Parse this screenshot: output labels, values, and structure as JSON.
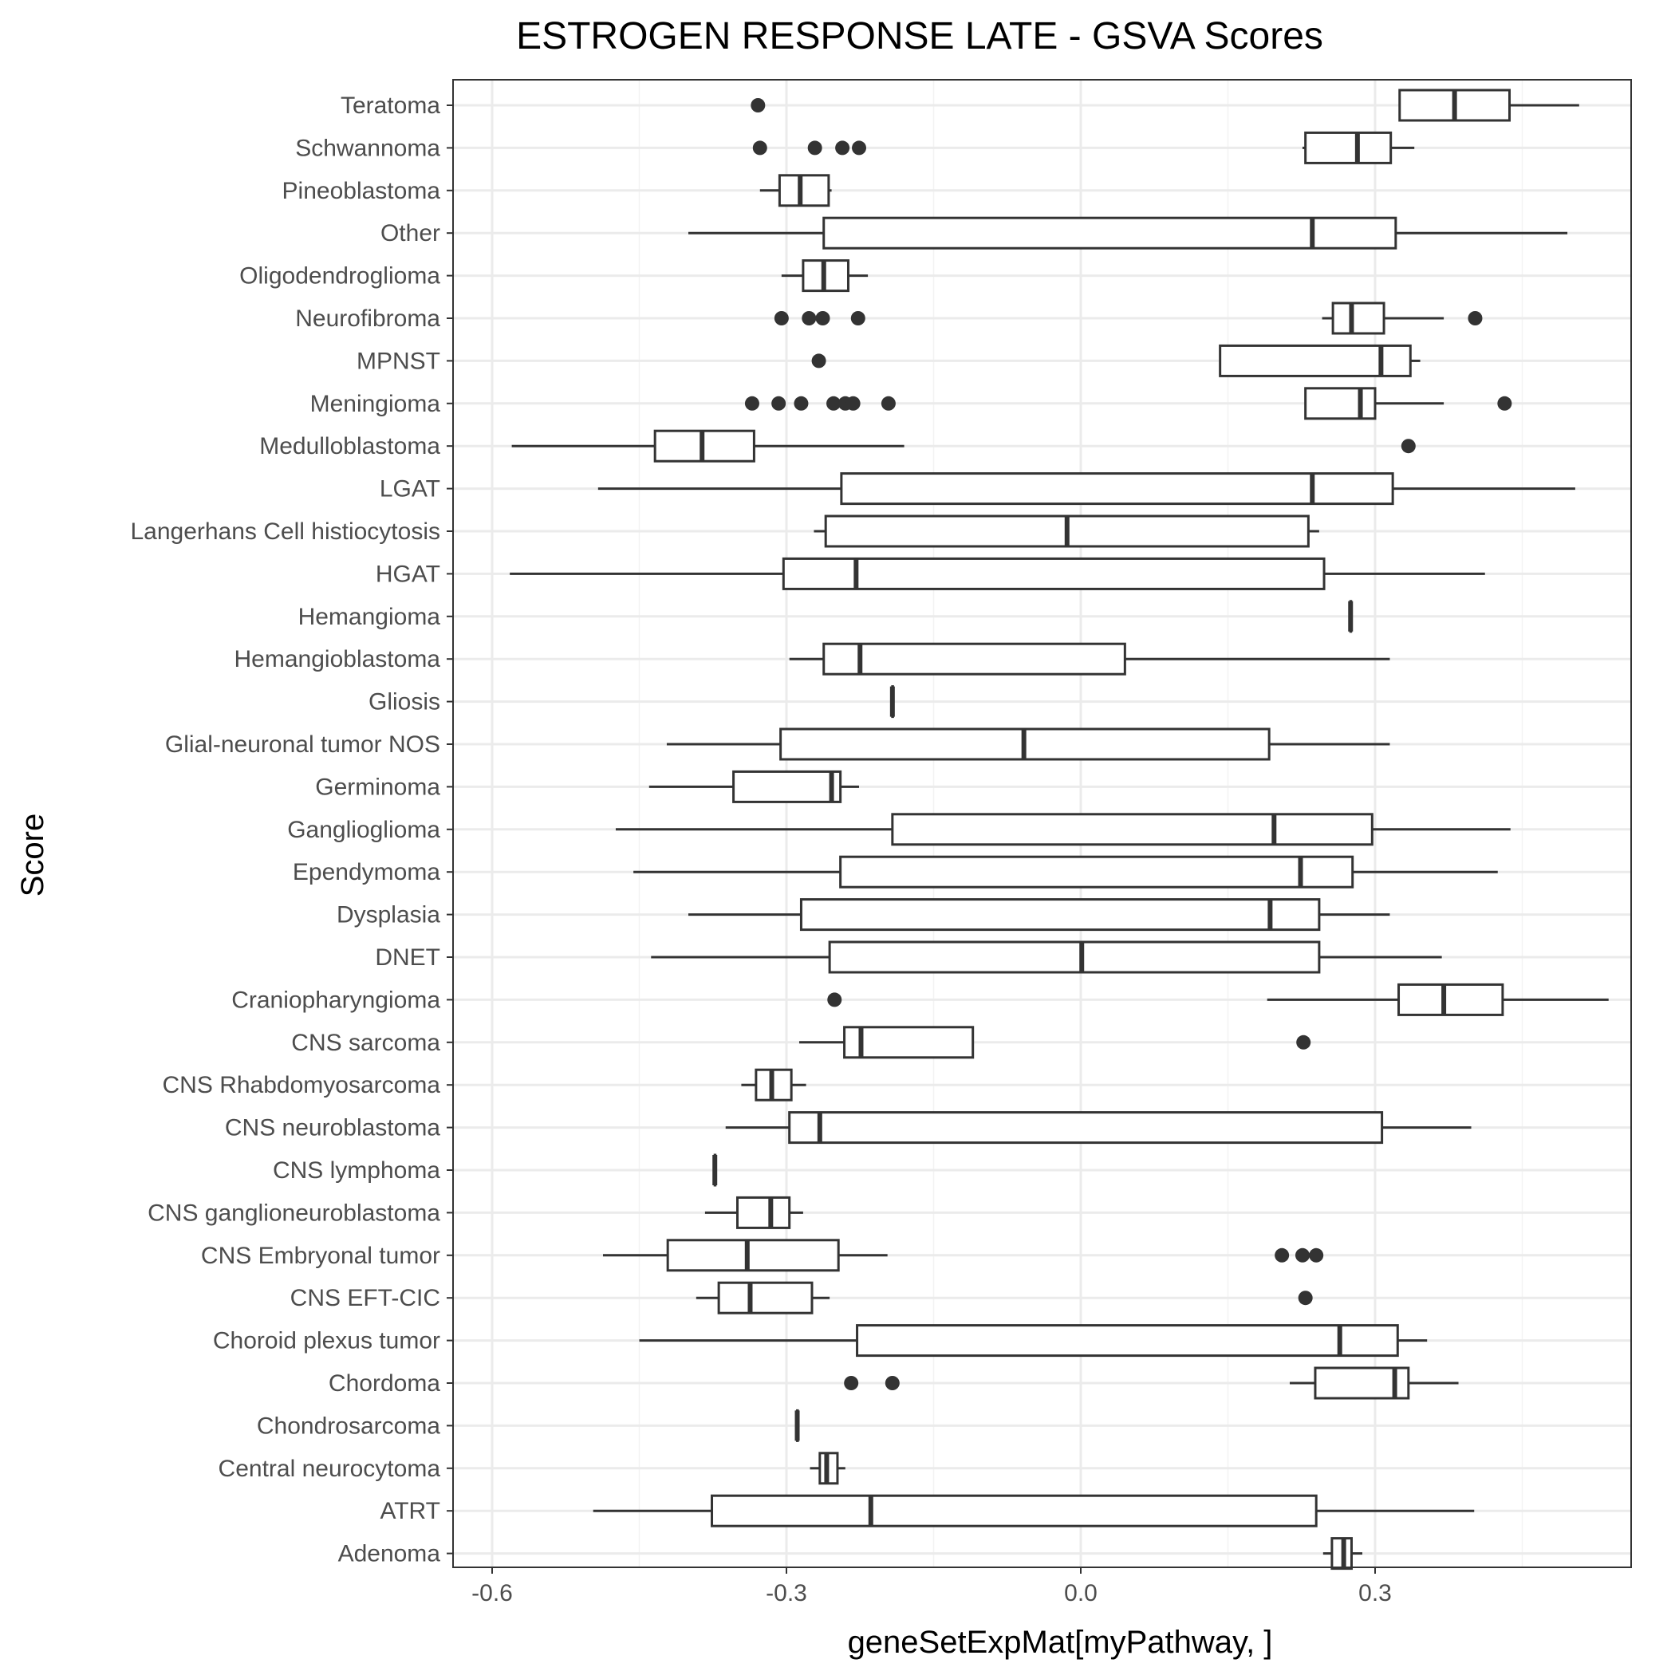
{
  "chart_data": {
    "type": "boxplot",
    "orientation": "horizontal",
    "title": "ESTROGEN RESPONSE LATE - GSVA Scores",
    "xlabel": "geneSetExpMat[myPathway, ]",
    "ylabel": "Score",
    "xlim": [
      -0.64,
      0.56
    ],
    "x_ticks": [
      -0.6,
      -0.3,
      0.0,
      0.3
    ],
    "x_tick_labels": [
      "-0.6",
      "-0.3",
      "0.0",
      "0.3"
    ],
    "grid": true,
    "legend": "none",
    "colors": {
      "box": "#333333",
      "grid_major": "#ebebeb",
      "grid_minor": "#f3f3f3",
      "text": "#4d4d4d",
      "panel_border": "#333333"
    },
    "categories_top_to_bottom": [
      "Teratoma",
      "Schwannoma",
      "Pineoblastoma",
      "Other",
      "Oligodendroglioma",
      "Neurofibroma",
      "MPNST",
      "Meningioma",
      "Medulloblastoma",
      "LGAT",
      "Langerhans Cell histiocytosis",
      "HGAT",
      "Hemangioma",
      "Hemangioblastoma",
      "Gliosis",
      "Glial-neuronal tumor NOS",
      "Germinoma",
      "Ganglioglioma",
      "Ependymoma",
      "Dysplasia",
      "DNET",
      "Craniopharyngioma",
      "CNS sarcoma",
      "CNS Rhabdomyosarcoma",
      "CNS neuroblastoma",
      "CNS lymphoma",
      "CNS ganglioneuroblastoma",
      "CNS Embryonal tumor",
      "CNS EFT-CIC",
      "Choroid plexus tumor",
      "Chordoma",
      "Chondrosarcoma",
      "Central neurocytoma",
      "ATRT",
      "Adenoma"
    ],
    "boxes": [
      {
        "label": "Teratoma",
        "min": 0.325,
        "q1": 0.325,
        "median": 0.381,
        "q3": 0.437,
        "max": 0.508,
        "outliers": [
          -0.329
        ]
      },
      {
        "label": "Schwannoma",
        "min": 0.226,
        "q1": 0.229,
        "median": 0.282,
        "q3": 0.316,
        "max": 0.34,
        "outliers": [
          -0.327,
          -0.271,
          -0.243,
          -0.226
        ]
      },
      {
        "label": "Pineoblastoma",
        "min": -0.327,
        "q1": -0.307,
        "median": -0.286,
        "q3": -0.257,
        "max": -0.254,
        "outliers": []
      },
      {
        "label": "Other",
        "min": -0.4,
        "q1": -0.262,
        "median": 0.236,
        "q3": 0.321,
        "max": 0.496,
        "outliers": []
      },
      {
        "label": "Oligodendroglioma",
        "min": -0.305,
        "q1": -0.283,
        "median": -0.262,
        "q3": -0.237,
        "max": -0.217,
        "outliers": []
      },
      {
        "label": "Neurofibroma",
        "min": 0.246,
        "q1": 0.257,
        "median": 0.276,
        "q3": 0.309,
        "max": 0.37,
        "outliers": [
          -0.305,
          -0.277,
          -0.263,
          -0.227,
          0.402
        ]
      },
      {
        "label": "MPNST",
        "min": 0.142,
        "q1": 0.142,
        "median": 0.306,
        "q3": 0.336,
        "max": 0.346,
        "outliers": [
          -0.267
        ]
      },
      {
        "label": "Meningioma",
        "min": 0.229,
        "q1": 0.229,
        "median": 0.285,
        "q3": 0.3,
        "max": 0.37,
        "outliers": [
          -0.335,
          -0.308,
          -0.285,
          -0.252,
          -0.24,
          -0.232,
          -0.196,
          0.432
        ]
      },
      {
        "label": "Medulloblastoma",
        "min": -0.58,
        "q1": -0.434,
        "median": -0.386,
        "q3": -0.333,
        "max": -0.18,
        "outliers": [
          0.334
        ]
      },
      {
        "label": "LGAT",
        "min": -0.492,
        "q1": -0.244,
        "median": 0.236,
        "q3": 0.318,
        "max": 0.504,
        "outliers": []
      },
      {
        "label": "Langerhans Cell histiocytosis",
        "min": -0.272,
        "q1": -0.26,
        "median": -0.014,
        "q3": 0.232,
        "max": 0.243,
        "outliers": []
      },
      {
        "label": "HGAT",
        "min": -0.582,
        "q1": -0.303,
        "median": -0.229,
        "q3": 0.248,
        "max": 0.412,
        "outliers": []
      },
      {
        "label": "Hemangioma",
        "min": 0.275,
        "q1": 0.275,
        "median": 0.275,
        "q3": 0.275,
        "max": 0.275,
        "outliers": []
      },
      {
        "label": "Hemangioblastoma",
        "min": -0.297,
        "q1": -0.262,
        "median": -0.225,
        "q3": 0.045,
        "max": 0.315,
        "outliers": []
      },
      {
        "label": "Gliosis",
        "min": -0.192,
        "q1": -0.192,
        "median": -0.192,
        "q3": -0.192,
        "max": -0.192,
        "outliers": []
      },
      {
        "label": "Glial-neuronal tumor NOS",
        "min": -0.422,
        "q1": -0.306,
        "median": -0.058,
        "q3": 0.192,
        "max": 0.315,
        "outliers": []
      },
      {
        "label": "Germinoma",
        "min": -0.44,
        "q1": -0.354,
        "median": -0.254,
        "q3": -0.245,
        "max": -0.226,
        "outliers": []
      },
      {
        "label": "Ganglioglioma",
        "min": -0.474,
        "q1": -0.192,
        "median": 0.197,
        "q3": 0.297,
        "max": 0.438,
        "outliers": []
      },
      {
        "label": "Ependymoma",
        "min": -0.456,
        "q1": -0.245,
        "median": 0.224,
        "q3": 0.277,
        "max": 0.425,
        "outliers": []
      },
      {
        "label": "Dysplasia",
        "min": -0.4,
        "q1": -0.285,
        "median": 0.193,
        "q3": 0.243,
        "max": 0.315,
        "outliers": []
      },
      {
        "label": "DNET",
        "min": -0.438,
        "q1": -0.256,
        "median": 0.001,
        "q3": 0.243,
        "max": 0.368,
        "outliers": []
      },
      {
        "label": "Craniopharyngioma",
        "min": 0.19,
        "q1": 0.324,
        "median": 0.37,
        "q3": 0.43,
        "max": 0.538,
        "outliers": [
          -0.251
        ]
      },
      {
        "label": "CNS sarcoma",
        "min": -0.287,
        "q1": -0.241,
        "median": -0.224,
        "q3": -0.11,
        "max": -0.11,
        "outliers": [
          0.227
        ]
      },
      {
        "label": "CNS Rhabdomyosarcoma",
        "min": -0.346,
        "q1": -0.331,
        "median": -0.315,
        "q3": -0.295,
        "max": -0.28,
        "outliers": []
      },
      {
        "label": "CNS neuroblastoma",
        "min": -0.362,
        "q1": -0.297,
        "median": -0.266,
        "q3": 0.307,
        "max": 0.398,
        "outliers": []
      },
      {
        "label": "CNS lymphoma",
        "min": -0.373,
        "q1": -0.373,
        "median": -0.373,
        "q3": -0.373,
        "max": -0.373,
        "outliers": []
      },
      {
        "label": "CNS ganglioneuroblastoma",
        "min": -0.383,
        "q1": -0.35,
        "median": -0.316,
        "q3": -0.297,
        "max": -0.283,
        "outliers": []
      },
      {
        "label": "CNS Embryonal tumor",
        "min": -0.487,
        "q1": -0.421,
        "median": -0.34,
        "q3": -0.247,
        "max": -0.197,
        "outliers": [
          0.205,
          0.226,
          0.24
        ]
      },
      {
        "label": "CNS EFT-CIC",
        "min": -0.392,
        "q1": -0.369,
        "median": -0.337,
        "q3": -0.274,
        "max": -0.256,
        "outliers": [
          0.229
        ]
      },
      {
        "label": "Choroid plexus tumor",
        "min": -0.45,
        "q1": -0.228,
        "median": 0.264,
        "q3": 0.323,
        "max": 0.353,
        "outliers": []
      },
      {
        "label": "Chordoma",
        "min": 0.213,
        "q1": 0.239,
        "median": 0.32,
        "q3": 0.334,
        "max": 0.385,
        "outliers": [
          -0.234,
          -0.192
        ]
      },
      {
        "label": "Chondrosarcoma",
        "min": -0.289,
        "q1": -0.289,
        "median": -0.289,
        "q3": -0.289,
        "max": -0.289,
        "outliers": []
      },
      {
        "label": "Central neurocytoma",
        "min": -0.276,
        "q1": -0.266,
        "median": -0.259,
        "q3": -0.248,
        "max": -0.24,
        "outliers": []
      },
      {
        "label": "ATRT",
        "min": -0.497,
        "q1": -0.376,
        "median": -0.214,
        "q3": 0.24,
        "max": 0.401,
        "outliers": []
      },
      {
        "label": "Adenoma",
        "min": 0.247,
        "q1": 0.256,
        "median": 0.268,
        "q3": 0.276,
        "max": 0.287,
        "outliers": []
      }
    ]
  }
}
